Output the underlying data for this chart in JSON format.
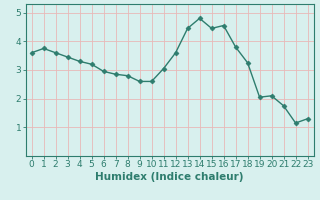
{
  "x": [
    0,
    1,
    2,
    3,
    4,
    5,
    6,
    7,
    8,
    9,
    10,
    11,
    12,
    13,
    14,
    15,
    16,
    17,
    18,
    19,
    20,
    21,
    22,
    23
  ],
  "y": [
    3.6,
    3.75,
    3.6,
    3.45,
    3.3,
    3.2,
    2.95,
    2.85,
    2.8,
    2.6,
    2.6,
    3.05,
    3.6,
    4.45,
    4.8,
    4.45,
    4.55,
    3.8,
    3.25,
    2.05,
    2.1,
    1.75,
    1.15,
    1.3
  ],
  "line_color": "#2e7d6e",
  "marker": "D",
  "marker_size": 2.5,
  "bg_color": "#d8f0ee",
  "grid_color": "#e8b8b8",
  "xlabel": "Humidex (Indice chaleur)",
  "xlim": [
    -0.5,
    23.5
  ],
  "ylim": [
    0,
    5.3
  ],
  "yticks": [
    1,
    2,
    3,
    4,
    5
  ],
  "xticks": [
    0,
    1,
    2,
    3,
    4,
    5,
    6,
    7,
    8,
    9,
    10,
    11,
    12,
    13,
    14,
    15,
    16,
    17,
    18,
    19,
    20,
    21,
    22,
    23
  ],
  "tick_fontsize": 6.5,
  "xlabel_fontsize": 7.5,
  "linewidth": 1.0,
  "spine_color": "#2e7d6e"
}
